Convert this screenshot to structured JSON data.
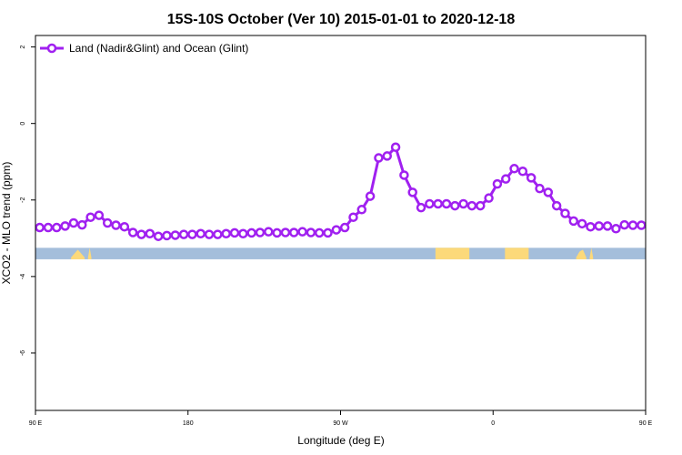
{
  "chart_data": {
    "type": "line",
    "title": "15S-10S October (Ver 10)   2015-01-01 to 2020-12-18",
    "xlabel": "Longitude (deg E)",
    "ylabel": "XCO2 - MLO trend (ppm)",
    "xlim": [
      90,
      450
    ],
    "ylim": [
      -7.5,
      2.3
    ],
    "x_ticks": [
      {
        "value": 90,
        "label": "90 E"
      },
      {
        "value": 180,
        "label": "180"
      },
      {
        "value": 270,
        "label": "90 W"
      },
      {
        "value": 360,
        "label": "0"
      },
      {
        "value": 450,
        "label": "90 E"
      },
      {
        "value": 540,
        "label": "180"
      }
    ],
    "y_ticks": [
      {
        "value": 2,
        "label": "2"
      },
      {
        "value": 0,
        "label": "0"
      },
      {
        "value": -2,
        "label": "-2"
      },
      {
        "value": -4,
        "label": "-4"
      },
      {
        "value": -6,
        "label": "-6"
      }
    ],
    "grid": false,
    "legend_position": "top-left",
    "colors": {
      "series": "#a020f0",
      "ocean": "#a4bedb",
      "land": "#fcd97a"
    },
    "surface_band": {
      "y_range": [
        -3.55,
        -3.25
      ],
      "land_segments": [
        [
          326,
          346
        ],
        [
          367,
          381
        ]
      ],
      "land_bumps": [
        {
          "x": [
            111,
            113,
            115,
            117,
            119
          ],
          "top": [
            -3.5,
            -3.4,
            -3.3,
            -3.4,
            -3.5
          ]
        },
        {
          "x": [
            121,
            122,
            123
          ],
          "top": [
            -3.5,
            -3.25,
            -3.5
          ]
        },
        {
          "x": [
            409,
            411,
            413,
            415
          ],
          "top": [
            -3.5,
            -3.35,
            -3.3,
            -3.5
          ]
        },
        {
          "x": [
            417,
            418,
            419
          ],
          "top": [
            -3.5,
            -3.25,
            -3.5
          ]
        }
      ]
    },
    "series": [
      {
        "name": "Land (Nadir&Glint) and Ocean (Glint)",
        "x": [
          92.5,
          97.5,
          102.5,
          107.5,
          112.5,
          117.5,
          122.5,
          127.5,
          132.5,
          137.5,
          142.5,
          147.5,
          152.5,
          157.5,
          162.5,
          167.5,
          172.5,
          177.5,
          182.5,
          187.5,
          192.5,
          197.5,
          202.5,
          207.5,
          212.5,
          217.5,
          222.5,
          227.5,
          232.5,
          237.5,
          242.5,
          247.5,
          252.5,
          257.5,
          262.5,
          267.5,
          272.5,
          277.5,
          282.5,
          287.5,
          292.5,
          297.5,
          302.5,
          307.5,
          312.5,
          317.5,
          322.5,
          327.5,
          332.5,
          337.5,
          342.5,
          347.5,
          352.5,
          357.5,
          362.5,
          367.5,
          372.5,
          377.5,
          382.5,
          387.5,
          392.5,
          397.5,
          402.5,
          407.5,
          412.5,
          417.5,
          422.5,
          427.5,
          432.5,
          437.5,
          442.5,
          447.5
        ],
        "y": [
          -2.72,
          -2.72,
          -2.72,
          -2.68,
          -2.6,
          -2.65,
          -2.45,
          -2.4,
          -2.6,
          -2.66,
          -2.7,
          -2.85,
          -2.9,
          -2.88,
          -2.95,
          -2.93,
          -2.92,
          -2.9,
          -2.9,
          -2.88,
          -2.9,
          -2.9,
          -2.88,
          -2.86,
          -2.88,
          -2.86,
          -2.85,
          -2.83,
          -2.86,
          -2.85,
          -2.85,
          -2.83,
          -2.85,
          -2.86,
          -2.86,
          -2.78,
          -2.72,
          -2.45,
          -2.25,
          -1.9,
          -0.9,
          -0.85,
          -0.62,
          -1.35,
          -1.8,
          -2.2,
          -2.1,
          -2.1,
          -2.1,
          -2.15,
          -2.1,
          -2.15,
          -2.15,
          -1.95,
          -1.58,
          -1.45,
          -1.18,
          -1.25,
          -1.42,
          -1.7,
          -1.8,
          -2.15,
          -2.35,
          -2.55,
          -2.62,
          -2.7,
          -2.68,
          -2.68,
          -2.75,
          -2.65,
          -2.66,
          -2.66
        ]
      }
    ]
  }
}
